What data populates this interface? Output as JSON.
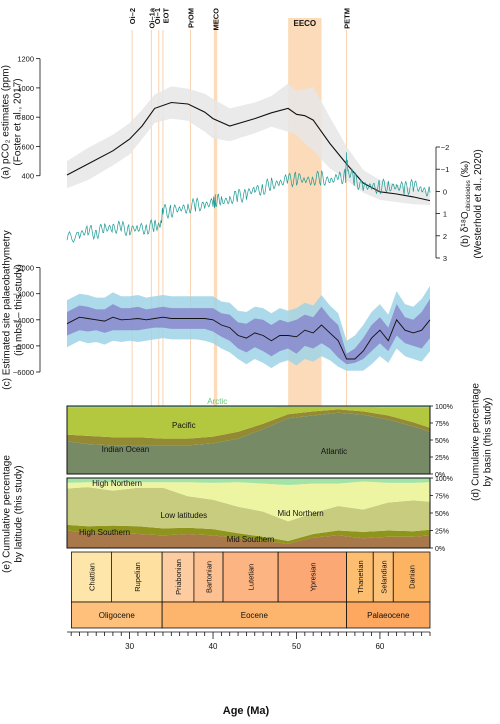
{
  "figure": {
    "x_axis": {
      "label": "Age (Ma)",
      "ticks": [
        30,
        40,
        50,
        60
      ],
      "range": [
        22.5,
        66.0
      ]
    },
    "events": [
      {
        "label": "Oi–2",
        "age": 30.3,
        "kind": "line"
      },
      {
        "label": "Oi–1a",
        "age": 32.6,
        "kind": "line"
      },
      {
        "label": "Oi–1",
        "age": 33.5,
        "kind": "line"
      },
      {
        "label": "EOT",
        "age": 34.0,
        "kind": "line"
      },
      {
        "label": "PrOM",
        "age": 37.3,
        "kind": "line"
      },
      {
        "label": "MECO",
        "from": 40.1,
        "to": 40.5,
        "kind": "band"
      },
      {
        "label": "EECO",
        "from": 49.0,
        "to": 53.0,
        "kind": "band"
      },
      {
        "label": "PETM",
        "age": 56.0,
        "kind": "line"
      }
    ],
    "event_colors": {
      "band": "#fbd9b5",
      "line": "#f6c79e"
    }
  },
  "chart_data": [
    {
      "id": "a",
      "type": "line",
      "ylabel": "(a) pCO₂ estimates (ppm)\n(Foster et al., 2017)",
      "ylim": [
        200,
        1300
      ],
      "yticks": [
        400,
        600,
        800,
        1000,
        1200
      ],
      "series": [
        {
          "x": [
            22.5,
            25,
            28,
            30,
            31.5,
            33,
            35,
            37,
            39,
            40,
            42,
            45,
            47,
            49,
            50,
            51,
            52,
            54,
            56,
            58,
            60,
            62,
            64,
            66
          ],
          "y": [
            405,
            480,
            570,
            650,
            740,
            860,
            900,
            890,
            835,
            790,
            740,
            790,
            830,
            860,
            820,
            810,
            780,
            620,
            480,
            350,
            290,
            275,
            255,
            230
          ],
          "lower": [
            315,
            370,
            470,
            545,
            650,
            760,
            790,
            775,
            700,
            655,
            635,
            690,
            735,
            700,
            680,
            620,
            570,
            450,
            370,
            285,
            235,
            220,
            205,
            200
          ],
          "upper": [
            500,
            590,
            680,
            760,
            850,
            955,
            1010,
            995,
            960,
            925,
            860,
            900,
            945,
            1030,
            980,
            990,
            1010,
            800,
            600,
            440,
            370,
            340,
            310,
            290
          ]
        }
      ],
      "colors": {
        "line": "#111111",
        "band": "#e6e6e6"
      }
    },
    {
      "id": "b",
      "type": "line",
      "ylabel": "(b) δ¹⁸O",
      "ylabel_sub": "cibicidoides",
      "ylabel_unit": " (‰)",
      "ylabel2": "(Westerhold et al., 2020)",
      "ylim": [
        3,
        -2
      ],
      "yticks": [
        -2,
        -1,
        0,
        1,
        2,
        3
      ],
      "series": [
        {
          "x": [
            22.5,
            24,
            25,
            26,
            27,
            28,
            29,
            30,
            31,
            32,
            33,
            33.7,
            34.0,
            35,
            36,
            37,
            38,
            39,
            40,
            40.3,
            41,
            42,
            43,
            44,
            45,
            46,
            47,
            48,
            49,
            50,
            51,
            52,
            53,
            54,
            55,
            55.9,
            56.0,
            56.2,
            57,
            58,
            59,
            60,
            61,
            62,
            63,
            64,
            65,
            66
          ],
          "y": [
            2.2,
            1.9,
            1.8,
            1.8,
            1.7,
            1.6,
            1.7,
            1.7,
            1.7,
            1.6,
            1.6,
            1.5,
            0.9,
            0.85,
            0.8,
            0.7,
            0.65,
            0.6,
            0.55,
            0.35,
            0.45,
            0.35,
            0.25,
            0.1,
            -0.05,
            -0.15,
            -0.3,
            -0.4,
            -0.5,
            -0.6,
            -0.5,
            -0.55,
            -0.6,
            -0.45,
            -0.6,
            -0.7,
            -1.65,
            -0.9,
            -0.55,
            -0.2,
            -0.2,
            -0.2,
            -0.25,
            -0.2,
            -0.15,
            -0.25,
            -0.1,
            0.05
          ]
        }
      ],
      "colors": {
        "line": "#1a9a94"
      }
    },
    {
      "id": "c",
      "type": "line",
      "ylabel": "(c) Estimated site palaeobathymetry\n(in mbsl – this study)",
      "ylim": [
        -6000,
        -1900
      ],
      "yticks": [
        -2000,
        -3000,
        -4000,
        -5000,
        -6000
      ],
      "series": [
        {
          "x": [
            22.5,
            24,
            25,
            26,
            27,
            28,
            29,
            30,
            31,
            32,
            33,
            34,
            35,
            36,
            37,
            38,
            39,
            40,
            41,
            42,
            43,
            44,
            45,
            46,
            47,
            48,
            49,
            50,
            51,
            52,
            53,
            54,
            55,
            56,
            57,
            58,
            59,
            60,
            61,
            62,
            63,
            64,
            65,
            66
          ],
          "y": [
            -4150,
            -3900,
            -3950,
            -4000,
            -4050,
            -3900,
            -4000,
            -3980,
            -3950,
            -4000,
            -3950,
            -3900,
            -3950,
            -3950,
            -3950,
            -3950,
            -3950,
            -4000,
            -4200,
            -4300,
            -4600,
            -4700,
            -4500,
            -4600,
            -4800,
            -4600,
            -4600,
            -4650,
            -4400,
            -4500,
            -4200,
            -4500,
            -4800,
            -5500,
            -5500,
            -5200,
            -4700,
            -4400,
            -4800,
            -4000,
            -4400,
            -4500,
            -4400,
            -4000
          ],
          "inner_lower": [
            -4600,
            -4400,
            -4450,
            -4400,
            -4500,
            -4400,
            -4400,
            -4400,
            -4400,
            -4350,
            -4300,
            -4300,
            -4350,
            -4350,
            -4350,
            -4350,
            -4350,
            -4450,
            -4650,
            -4800,
            -5100,
            -5250,
            -5050,
            -5200,
            -5400,
            -5200,
            -5100,
            -5300,
            -5000,
            -5100,
            -4900,
            -5100,
            -5450,
            -5700,
            -5650,
            -5500,
            -5200,
            -4900,
            -5200,
            -4600,
            -4900,
            -5000,
            -5100,
            -4700
          ],
          "inner_upper": [
            -3700,
            -3450,
            -3500,
            -3600,
            -3600,
            -3400,
            -3550,
            -3550,
            -3500,
            -3600,
            -3550,
            -3500,
            -3550,
            -3550,
            -3550,
            -3550,
            -3550,
            -3550,
            -3750,
            -3800,
            -4100,
            -4150,
            -3950,
            -4000,
            -4200,
            -4000,
            -4100,
            -4000,
            -3800,
            -3900,
            -3500,
            -3900,
            -4200,
            -5300,
            -5100,
            -4700,
            -4200,
            -3900,
            -4300,
            -3400,
            -3900,
            -4000,
            -3700,
            -3200
          ],
          "outer_lower": [
            -5050,
            -4800,
            -4900,
            -4850,
            -4950,
            -4800,
            -4850,
            -4800,
            -4850,
            -4800,
            -4750,
            -4700,
            -4750,
            -4750,
            -4750,
            -4750,
            -4800,
            -4900,
            -5100,
            -5250,
            -5500,
            -5700,
            -5500,
            -5650,
            -5850,
            -5650,
            -5550,
            -5750,
            -5500,
            -5600,
            -5400,
            -5550,
            -5800,
            -5950,
            -5950,
            -5950,
            -5700,
            -5400,
            -5650,
            -5100,
            -5400,
            -5500,
            -5600,
            -5200
          ],
          "outer_upper": [
            -3250,
            -3000,
            -3050,
            -3150,
            -3150,
            -2950,
            -3100,
            -3100,
            -3050,
            -3150,
            -3100,
            -3050,
            -3100,
            -3100,
            -3100,
            -3100,
            -3100,
            -3100,
            -3300,
            -3350,
            -3650,
            -3700,
            -3500,
            -3550,
            -3750,
            -3550,
            -3650,
            -3550,
            -3350,
            -3450,
            -3050,
            -3450,
            -3750,
            -4800,
            -4600,
            -4200,
            -3700,
            -3400,
            -3800,
            -2900,
            -3400,
            -3500,
            -3200,
            -2700
          ]
        }
      ],
      "colors": {
        "line": "#111111",
        "inner": "#8888cc",
        "outer": "#9fd3e6"
      }
    },
    {
      "id": "d",
      "type": "area",
      "ylabel": "(d) Cumulative percentage\nby basin (this study)",
      "ylim": [
        0,
        100
      ],
      "yticks_labels": [
        "0%",
        "25%",
        "50%",
        "75%",
        "100%"
      ],
      "x": [
        22.5,
        25,
        28,
        31,
        34,
        37,
        40,
        43,
        46,
        49,
        52,
        55,
        58,
        61,
        64,
        66
      ],
      "series": [
        {
          "name": "Atlantic",
          "color": "#768a66",
          "values": [
            48,
            44,
            42,
            42,
            42,
            42,
            45,
            52,
            66,
            82,
            86,
            90,
            87,
            80,
            70,
            62
          ]
        },
        {
          "name": "Indian Ocean",
          "color": "#948a33",
          "values": [
            10,
            12,
            12,
            12,
            10,
            10,
            10,
            10,
            8,
            6,
            6,
            5,
            5,
            6,
            6,
            6
          ]
        },
        {
          "name": "Pacific",
          "color": "#b3c83e",
          "values": [
            40,
            42,
            44,
            44,
            46,
            46,
            43,
            36,
            24,
            11,
            7,
            4,
            7,
            12,
            22,
            30
          ]
        },
        {
          "name": "Arctic",
          "color": "#8fd39a",
          "values": [
            2,
            2,
            2,
            2,
            2,
            2,
            2,
            2,
            2,
            1,
            1,
            1,
            1,
            2,
            2,
            2
          ]
        }
      ]
    },
    {
      "id": "e",
      "type": "area",
      "ylabel": "(e) Cumulative percentage\nby latitude (this study)",
      "ylim": [
        0,
        100
      ],
      "yticks_labels": [
        "0%",
        "25%",
        "50%",
        "75%",
        "100%"
      ],
      "x": [
        22.5,
        25,
        28,
        31,
        34,
        37,
        40,
        43,
        46,
        49,
        52,
        55,
        58,
        61,
        64,
        66
      ],
      "series": [
        {
          "name": "High Southern",
          "color": "#a8774a",
          "values": [
            25,
            22,
            22,
            20,
            18,
            20,
            18,
            14,
            10,
            6,
            15,
            18,
            14,
            16,
            16,
            18
          ]
        },
        {
          "name": "Mid Southern",
          "color": "#8f951c",
          "values": [
            8,
            9,
            10,
            11,
            10,
            9,
            9,
            7,
            6,
            4,
            5,
            7,
            9,
            9,
            8,
            8
          ]
        },
        {
          "name": "Low latitudes",
          "color": "#c7cc7e",
          "values": [
            52,
            56,
            50,
            55,
            58,
            45,
            42,
            38,
            36,
            28,
            30,
            35,
            32,
            40,
            44,
            40
          ]
        },
        {
          "name": "Mid Northern",
          "color": "#eef5a2",
          "values": [
            8,
            7,
            12,
            8,
            8,
            20,
            24,
            35,
            40,
            52,
            42,
            32,
            40,
            28,
            25,
            28
          ]
        },
        {
          "name": "High Northern",
          "color": "#a3e3a8",
          "values": [
            7,
            6,
            6,
            6,
            6,
            6,
            7,
            6,
            8,
            10,
            8,
            8,
            5,
            7,
            7,
            6
          ]
        }
      ]
    }
  ],
  "timescale": {
    "stages": [
      {
        "name": "Chattian",
        "from": 23.03,
        "to": 27.82,
        "color": "#fee6aa"
      },
      {
        "name": "Rupelian",
        "from": 27.82,
        "to": 33.9,
        "color": "#fee0a0"
      },
      {
        "name": "Priabonian",
        "from": 33.9,
        "to": 37.71,
        "color": "#fdcda1"
      },
      {
        "name": "Bartonian",
        "from": 37.71,
        "to": 41.2,
        "color": "#fdc091"
      },
      {
        "name": "Lutetian",
        "from": 41.2,
        "to": 47.8,
        "color": "#fcb482"
      },
      {
        "name": "Ypresian",
        "from": 47.8,
        "to": 56.0,
        "color": "#fba875"
      },
      {
        "name": "Thanetian",
        "from": 56.0,
        "to": 59.2,
        "color": "#fdbf6f"
      },
      {
        "name": "Selandian",
        "from": 59.2,
        "to": 61.6,
        "color": "#fec178"
      },
      {
        "name": "Danian",
        "from": 61.6,
        "to": 66.0,
        "color": "#fdb462"
      }
    ],
    "epochs": [
      {
        "name": "Oligocene",
        "from": 23.03,
        "to": 33.9,
        "color": "#fec07a"
      },
      {
        "name": "Eocene",
        "from": 33.9,
        "to": 56.0,
        "color": "#fdb46c"
      },
      {
        "name": "Palaeocene",
        "from": 56.0,
        "to": 66.0,
        "color": "#fda75f"
      }
    ]
  }
}
